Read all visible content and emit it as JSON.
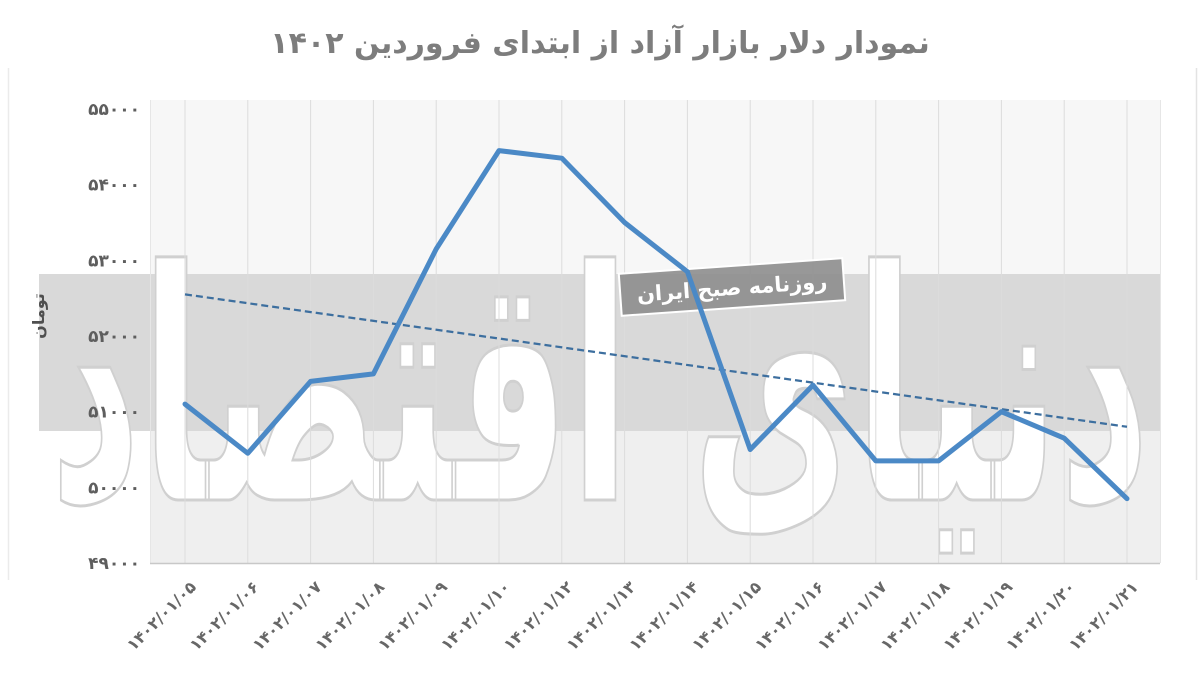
{
  "title": "نمودار دلار بازار آزاد از ابتدای فروردین ۱۴۰۲",
  "ylabel": "تومان",
  "watermark": {
    "text": "دنیای اقتصاد",
    "badge": "روزنامه صبح ایران"
  },
  "colors": {
    "line": "#4b89c6",
    "trendline": "#3d6f9f",
    "band": "#d9d9d9",
    "badge_bg": "#8f8f8f",
    "badge_text": "#ffffff",
    "title_text": "#7d7d7d",
    "tick_text": "#636363",
    "gridline": "#dcdcdc"
  },
  "chart_data": {
    "type": "line",
    "title": "نمودار دلار بازار آزاد از ابتدای فروردین ۱۴۰۲",
    "xlabel": "",
    "ylabel": "تومان",
    "categories": [
      "۱۴۰۲/۰۱/۰۵",
      "۱۴۰۲/۰۱/۰۶",
      "۱۴۰۲/۰۱/۰۷",
      "۱۴۰۲/۰۱/۰۸",
      "۱۴۰۲/۰۱/۰۹",
      "۱۴۰۲/۰۱/۱۰",
      "۱۴۰۲/۰۱/۱۲",
      "۱۴۰۲/۰۱/۱۳",
      "۱۴۰۲/۰۱/۱۴",
      "۱۴۰۲/۰۱/۱۵",
      "۱۴۰۲/۰۱/۱۶",
      "۱۴۰۲/۰۱/۱۷",
      "۱۴۰۲/۰۱/۱۸",
      "۱۴۰۲/۰۱/۱۹",
      "۱۴۰۲/۰۱/۲۰",
      "۱۴۰۲/۰۱/۲۱"
    ],
    "series": [
      {
        "name": "دلار بازار آزاد",
        "values": [
          51100,
          50450,
          51400,
          51500,
          53150,
          54450,
          54350,
          53500,
          52850,
          50500,
          51350,
          50350,
          50350,
          51000,
          50650,
          49850
        ]
      }
    ],
    "trendline": {
      "type": "linear",
      "style": "dashed",
      "start_value": 52550,
      "end_value": 50800
    },
    "yticks": {
      "values": [
        55000,
        54000,
        53000,
        52000,
        51000,
        50000,
        49000
      ],
      "labels": [
        "۵۵۰۰۰",
        "۵۴۰۰۰",
        "۵۳۰۰۰",
        "۵۲۰۰۰",
        "۵۱۰۰۰",
        "۵۰۰۰۰",
        "۴۹۰۰۰"
      ]
    },
    "ylim": [
      49000,
      55000
    ],
    "xtick_rotation": 45,
    "grid": "vertical",
    "legend": "none"
  }
}
